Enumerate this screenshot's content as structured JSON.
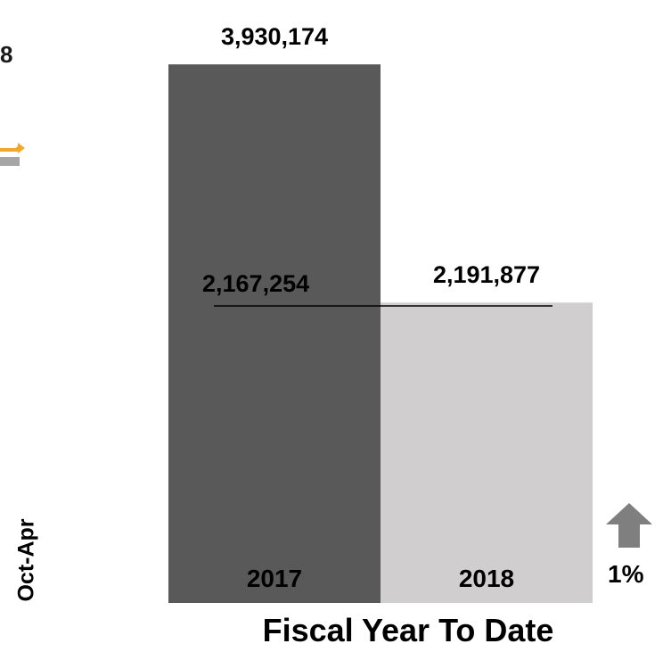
{
  "fragments": {
    "top_left_text": "8",
    "side_label": "Oct-Apr",
    "change_percent": "1%",
    "change_icon": "up-arrow-icon",
    "partial_icon": "transfer-icon"
  },
  "chart_data": {
    "type": "bar",
    "xlabel": "Fiscal Year To Date",
    "categories": [
      "2017",
      "2018"
    ],
    "values": [
      3930174,
      2191877
    ],
    "value_labels": [
      "3,930,174",
      "2,191,877"
    ],
    "bar_colors": [
      "#595959",
      "#d0cece"
    ],
    "ylim": [
      0,
      4400000
    ],
    "reference_line": {
      "value": 2167254,
      "label": "2,167,254"
    },
    "grid": false,
    "legend": "none"
  }
}
